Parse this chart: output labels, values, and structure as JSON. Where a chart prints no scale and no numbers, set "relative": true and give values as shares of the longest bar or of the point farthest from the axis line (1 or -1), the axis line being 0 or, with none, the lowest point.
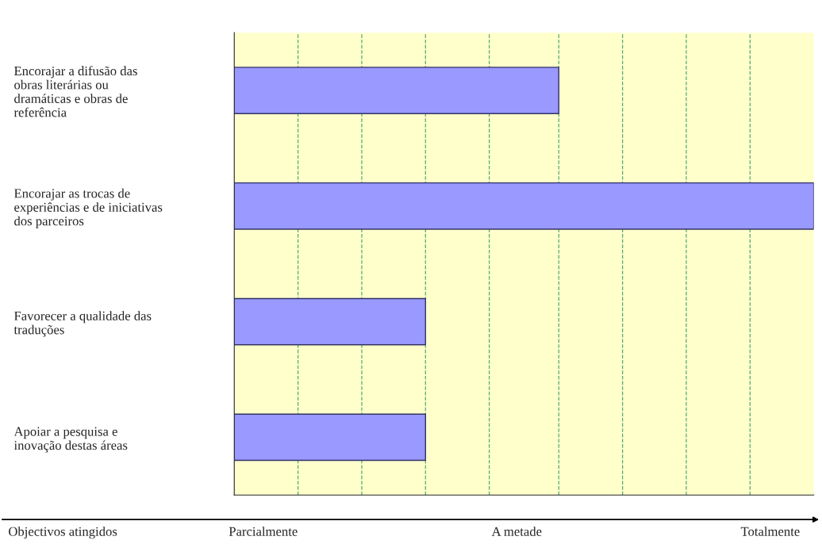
{
  "chart_data": {
    "type": "bar",
    "orientation": "horizontal",
    "relative": true,
    "ref_lines": [
      {
        "axis": "x",
        "value": 0.11,
        "color": "#55aa77",
        "line_style": "dashed"
      },
      {
        "axis": "x",
        "value": 0.22,
        "color": "#55aa77",
        "line_style": "dashed"
      },
      {
        "axis": "x",
        "value": 0.33,
        "color": "#55aa77",
        "line_style": "dashed"
      },
      {
        "axis": "x",
        "value": 0.44,
        "color": "#55aa77",
        "line_style": "dashed"
      },
      {
        "axis": "x",
        "value": 0.56,
        "color": "#55aa77",
        "line_style": "dashed"
      },
      {
        "axis": "x",
        "value": 0.67,
        "color": "#55aa77",
        "line_style": "dashed"
      },
      {
        "axis": "x",
        "value": 0.78,
        "color": "#55aa77",
        "line_style": "dashed"
      },
      {
        "axis": "x",
        "value": 0.89,
        "color": "#55aa77",
        "line_style": "dashed"
      }
    ],
    "categories": [
      "Encorajar a difusão das\nobras literárias ou\ndramáticas e obras de\nreferência",
      "Encorajar as trocas de\nexperiências e de iniciativas\ndos parceiros",
      "Favorecer a qualidade das\ntraduções",
      "Apoiar a pesquisa e\ninovação destas áreas"
    ],
    "values": [
      0.56,
      1,
      0.33,
      0.33
    ],
    "color": "#9999ff",
    "annotations": [
      "Objectivos atingidos",
      "Parcialmente",
      "A metade",
      "Totalmente"
    ]
  }
}
